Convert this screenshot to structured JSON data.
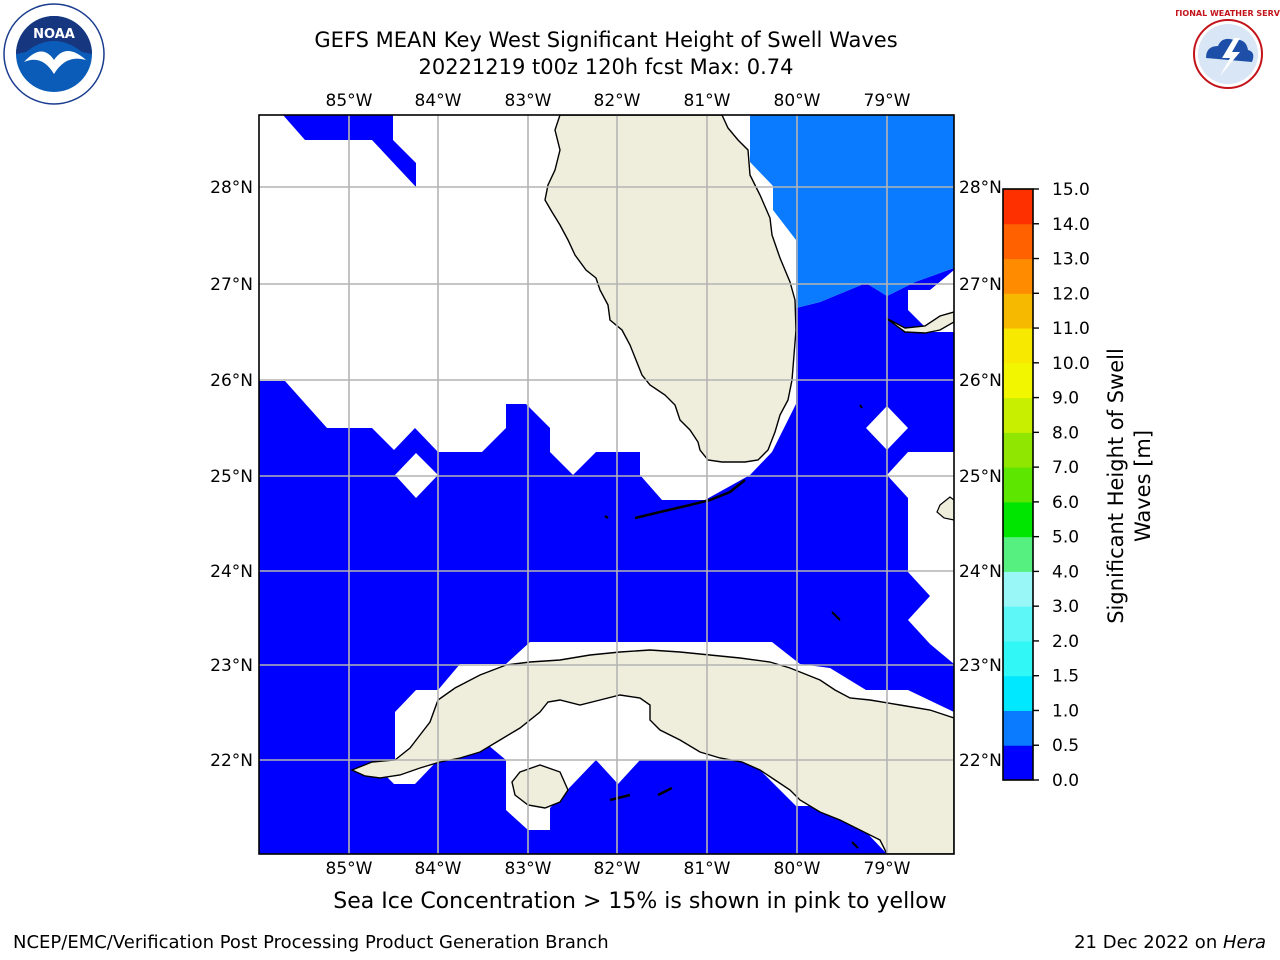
{
  "header": {
    "title_line1": "GEFS MEAN Key West Significant Height of Swell Waves",
    "title_line2": "20221219 t00z 120h fcst   Max: 0.74"
  },
  "logos": {
    "left": "noaa-logo",
    "right": "nws-logo",
    "left_text": "NOAA",
    "right_text": "NATIONAL WEATHER SERVICE"
  },
  "map": {
    "lon_labels": [
      "85°W",
      "84°W",
      "83°W",
      "82°W",
      "81°W",
      "80°W",
      "79°W"
    ],
    "lat_labels": [
      "28°N",
      "27°N",
      "26°N",
      "25°N",
      "24°N",
      "23°N",
      "22°N"
    ],
    "grid": true,
    "land_color": "#efeddc",
    "swell_band_0_05_color": "#0000ff",
    "swell_band_05_1_color": "#0a7bff"
  },
  "colorbar": {
    "label": "Significant Height of Swell Waves [m]",
    "ticks": [
      "0.0",
      "0.5",
      "1.0",
      "1.5",
      "2.0",
      "3.0",
      "4.0",
      "5.0",
      "6.0",
      "7.0",
      "8.0",
      "9.0",
      "10.0",
      "11.0",
      "12.0",
      "13.0",
      "14.0",
      "15.0"
    ],
    "colors": [
      "#0000ff",
      "#0a7bff",
      "#00e8ff",
      "#31f7f7",
      "#5ef7f7",
      "#9af7f7",
      "#55f080",
      "#00e600",
      "#5ce600",
      "#90e600",
      "#c8ef00",
      "#f2f700",
      "#f7ea00",
      "#f7b800",
      "#ff8c00",
      "#ff6000",
      "#ff3000",
      "#ff0000"
    ]
  },
  "ice_note": "Sea Ice Concentration > 15% is shown in pink to yellow",
  "footer": {
    "left": "NCEP/EMC/Verification Post Processing Product Generation Branch",
    "date": "21 Dec 2022 on ",
    "machine": "Hera"
  }
}
